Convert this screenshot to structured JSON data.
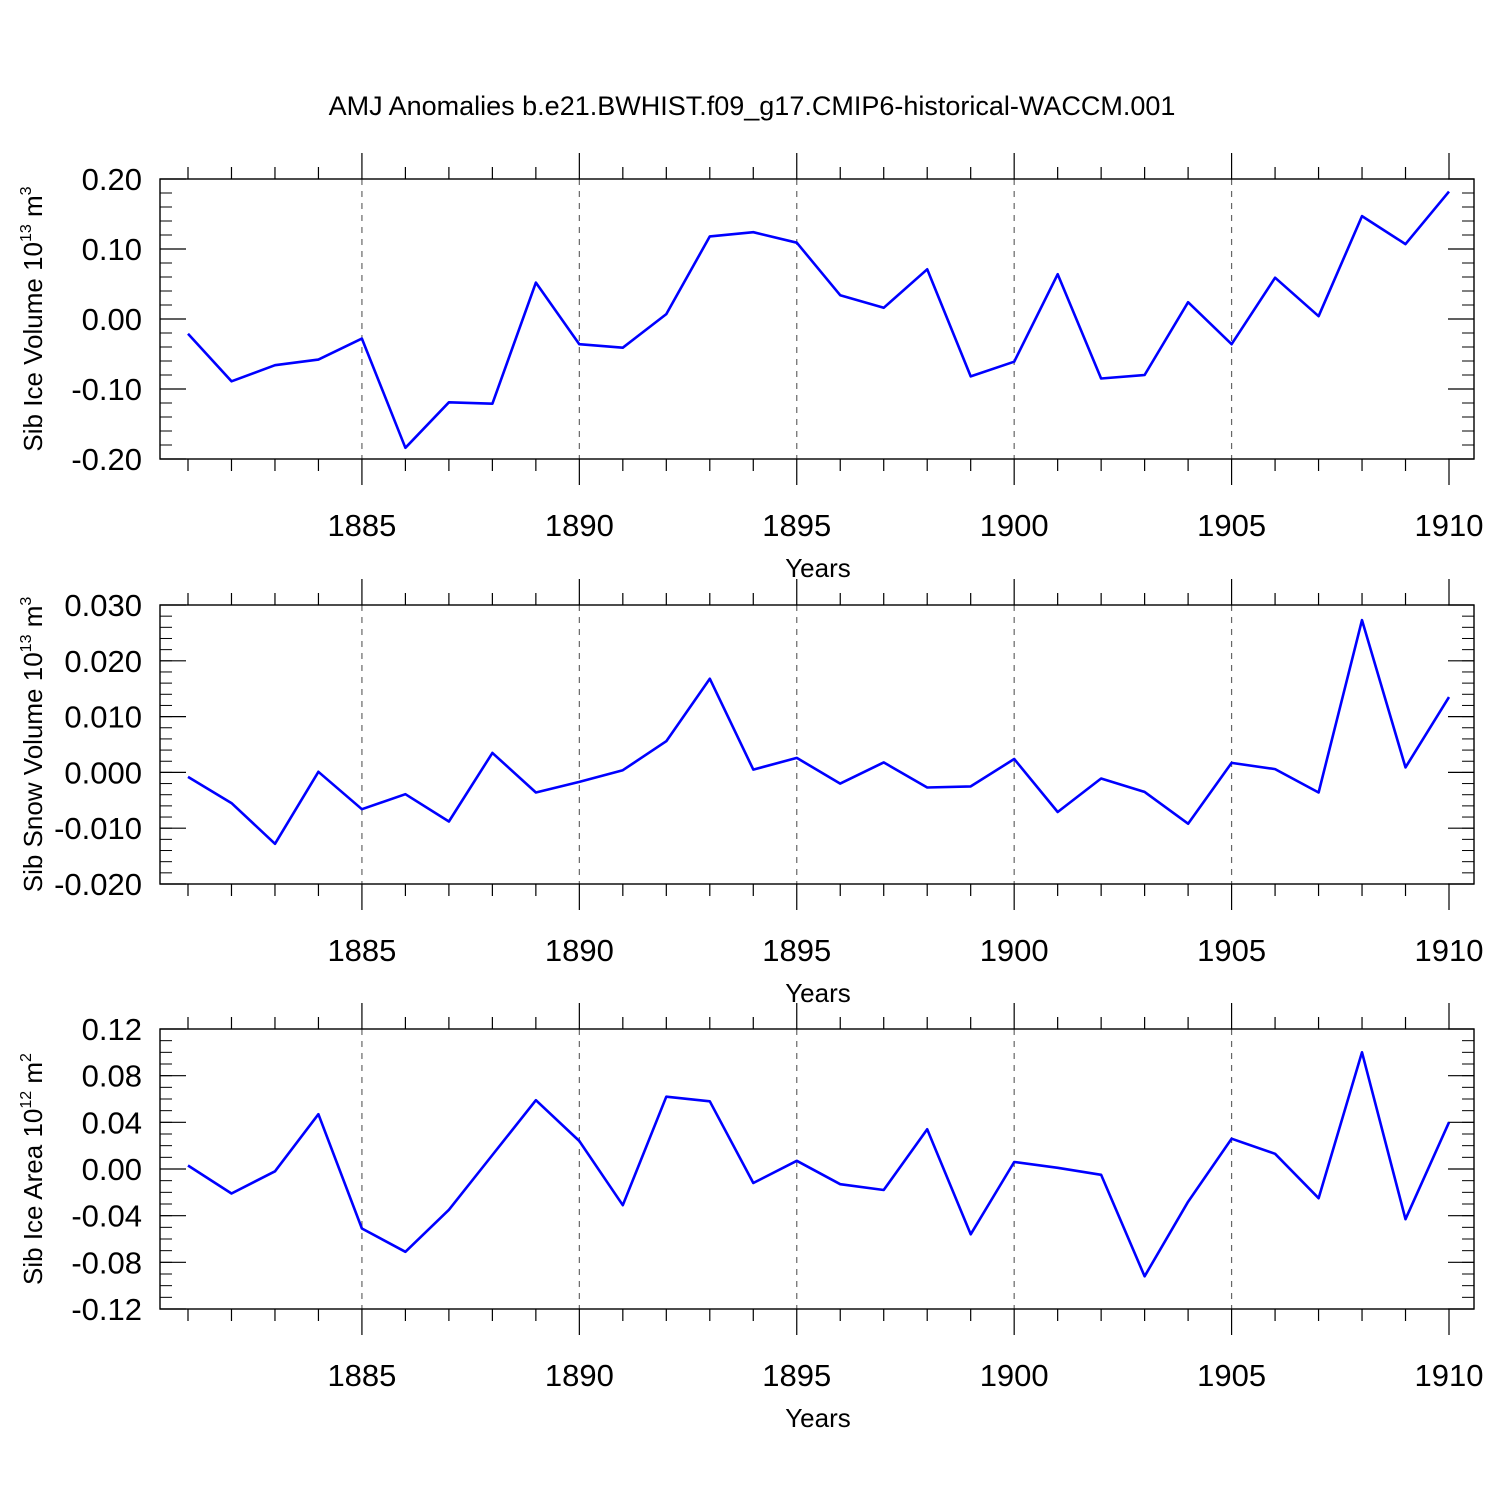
{
  "title": "AMJ Anomalies b.e21.BWHIST.f09_g17.CMIP6-historical-WACCM.001",
  "colors": {
    "series": "#0000ff"
  },
  "chart_data": [
    {
      "type": "line",
      "xlabel": "Years",
      "ylabel": {
        "text": "Sib Ice Volume 10",
        "exp": "13",
        "unit": " m",
        "unit_exp": "3"
      },
      "xlim": [
        1881,
        1910
      ],
      "ylim": [
        -0.2,
        0.2
      ],
      "xticks": [
        1885,
        1890,
        1895,
        1900,
        1905,
        1910
      ],
      "yticks": [
        -0.2,
        -0.1,
        0.0,
        0.1,
        0.2
      ],
      "ytick_labels": [
        "-0.20",
        "-0.10",
        "0.00",
        "0.10",
        "0.20"
      ],
      "minor_y_step": 0.02,
      "grid": "vertical-dashed at major x ticks",
      "x": [
        1881,
        1882,
        1883,
        1884,
        1885,
        1886,
        1887,
        1888,
        1889,
        1890,
        1891,
        1892,
        1893,
        1894,
        1895,
        1896,
        1897,
        1898,
        1899,
        1900,
        1901,
        1902,
        1903,
        1904,
        1905,
        1906,
        1907,
        1908,
        1909,
        1910
      ],
      "values": [
        -0.021,
        -0.089,
        -0.066,
        -0.058,
        -0.028,
        -0.184,
        -0.119,
        -0.121,
        0.052,
        -0.036,
        -0.041,
        0.007,
        0.118,
        0.124,
        0.109,
        0.034,
        0.016,
        0.071,
        -0.082,
        -0.061,
        0.064,
        -0.085,
        -0.08,
        0.024,
        -0.036,
        0.059,
        0.004,
        0.147,
        0.107,
        0.182
      ]
    },
    {
      "type": "line",
      "xlabel": "Years",
      "ylabel": {
        "text": "Sib Snow Volume 10",
        "exp": "13",
        "unit": " m",
        "unit_exp": "3"
      },
      "xlim": [
        1881,
        1910
      ],
      "ylim": [
        -0.02,
        0.03
      ],
      "xticks": [
        1885,
        1890,
        1895,
        1900,
        1905,
        1910
      ],
      "yticks": [
        -0.02,
        -0.01,
        0.0,
        0.01,
        0.02,
        0.03
      ],
      "ytick_labels": [
        "-0.020",
        "-0.010",
        "0.000",
        "0.010",
        "0.020",
        "0.030"
      ],
      "minor_y_step": 0.002,
      "grid": "vertical-dashed at major x ticks",
      "x": [
        1881,
        1882,
        1883,
        1884,
        1885,
        1886,
        1887,
        1888,
        1889,
        1890,
        1891,
        1892,
        1893,
        1894,
        1895,
        1896,
        1897,
        1898,
        1899,
        1900,
        1901,
        1902,
        1903,
        1904,
        1905,
        1906,
        1907,
        1908,
        1909,
        1910
      ],
      "values": [
        -0.0008,
        -0.0055,
        -0.0128,
        0.0001,
        -0.0066,
        -0.0039,
        -0.0088,
        0.0035,
        -0.0036,
        -0.0017,
        0.0004,
        0.0056,
        0.0168,
        0.0005,
        0.0026,
        -0.002,
        0.0018,
        -0.0027,
        -0.0025,
        0.0024,
        -0.0071,
        -0.0011,
        -0.0035,
        -0.0092,
        0.0017,
        0.0006,
        -0.0036,
        0.0273,
        0.0009,
        0.0135
      ]
    },
    {
      "type": "line",
      "xlabel": "Years",
      "ylabel": {
        "text": "Sib Ice Area 10",
        "exp": "12",
        "unit": " m",
        "unit_exp": "2"
      },
      "xlim": [
        1881,
        1910
      ],
      "ylim": [
        -0.12,
        0.12
      ],
      "xticks": [
        1885,
        1890,
        1895,
        1900,
        1905,
        1910
      ],
      "yticks": [
        -0.12,
        -0.08,
        -0.04,
        0.0,
        0.04,
        0.08,
        0.12
      ],
      "ytick_labels": [
        "-0.12",
        "-0.08",
        "-0.04",
        "0.00",
        "0.04",
        "0.08",
        "0.12"
      ],
      "minor_y_step": 0.01,
      "grid": "vertical-dashed at major x ticks",
      "x": [
        1881,
        1882,
        1883,
        1884,
        1885,
        1886,
        1887,
        1888,
        1889,
        1890,
        1891,
        1892,
        1893,
        1894,
        1895,
        1896,
        1897,
        1898,
        1899,
        1900,
        1901,
        1902,
        1903,
        1904,
        1905,
        1906,
        1907,
        1908,
        1909,
        1910
      ],
      "values": [
        0.003,
        -0.021,
        -0.002,
        0.047,
        -0.051,
        -0.071,
        -0.035,
        0.012,
        0.059,
        0.024,
        -0.031,
        0.062,
        0.058,
        -0.012,
        0.007,
        -0.013,
        -0.018,
        0.034,
        -0.056,
        0.006,
        0.001,
        -0.005,
        -0.092,
        -0.028,
        0.026,
        0.013,
        -0.025,
        0.1,
        -0.043,
        0.04
      ]
    }
  ]
}
